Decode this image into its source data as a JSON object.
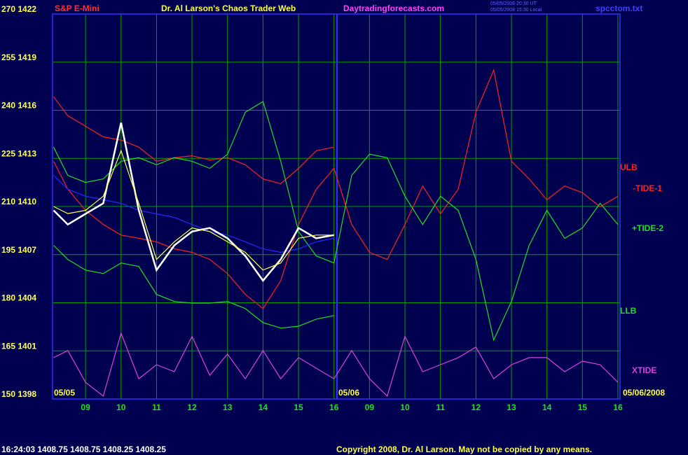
{
  "chart_data": {
    "type": "line",
    "title": "Dr. Al Larson's Chaos Trader Web",
    "instrument": "S&P E-Mini",
    "website": "Daytradingforecasts.com",
    "file_name": "spcctom.txt",
    "timestamp_ut": "05/05/2008 20:30 UT",
    "timestamp_local": "05/05/2008 15:30 Local",
    "date_labels": [
      "05/05",
      "05/06",
      "05/06/2008"
    ],
    "quote": "16:24:03  1408.75 1408.75 1408.25 1408.25",
    "copyright": "Copyright 2008, Dr. Al Larson. May not be copied by any means.",
    "grid": true,
    "xlim": [
      8.07,
      24.06
    ],
    "ylim": [
      150,
      270
    ],
    "xticks": [
      {
        "value": 9,
        "label": "09"
      },
      10,
      11,
      12,
      13,
      14,
      15,
      16,
      {
        "value": 17,
        "label": "09"
      },
      {
        "value": 18,
        "label": "10"
      },
      {
        "value": 19,
        "label": "11"
      },
      {
        "value": 20,
        "label": "12"
      },
      {
        "value": 21,
        "label": "13"
      },
      {
        "value": 22,
        "label": "14"
      },
      {
        "value": 23,
        "label": "15"
      },
      {
        "value": 24,
        "label": "16"
      }
    ],
    "yticks": [
      {
        "value": 150,
        "label": "150 1398"
      },
      {
        "value": 165,
        "label": "165 1401"
      },
      {
        "value": 180,
        "label": "180 1404"
      },
      {
        "value": 195,
        "label": "195 1407"
      },
      {
        "value": 210,
        "label": "210 1410"
      },
      {
        "value": 225,
        "label": "225 1413"
      },
      {
        "value": 240,
        "label": "240 1416"
      },
      {
        "value": 255,
        "label": "255 1419"
      },
      {
        "value": 270,
        "label": "270 1422"
      }
    ],
    "x": [
      8.1,
      8.5,
      9,
      9.5,
      10,
      10.5,
      11,
      11.5,
      12,
      12.5,
      13,
      13.5,
      14,
      14.5,
      15,
      15.5,
      16,
      16.5,
      17,
      17.5,
      18,
      18.5,
      19,
      19.5,
      20,
      20.5,
      21,
      21.5,
      22,
      22.5,
      23,
      23.5,
      24
    ],
    "series": [
      {
        "name": "ULB",
        "color": "#ff2020",
        "values": [
          244.2,
          238.3,
          235.0,
          231.7,
          230.7,
          228.5,
          224.1,
          225.2,
          225.8,
          224.5,
          225.2,
          223.0,
          218.6,
          217.1,
          221.9,
          227.4,
          228.5,
          null,
          null,
          null,
          null,
          null,
          null,
          null,
          null,
          null,
          null,
          null,
          null,
          null,
          null,
          null,
          null
        ]
      },
      {
        "name": "-TIDE-1",
        "color": "#ff2020",
        "values": [
          224.1,
          215.4,
          208.8,
          204.4,
          201.1,
          200.1,
          199.0,
          196.8,
          195.7,
          193.5,
          189.1,
          182.6,
          178.2,
          186.9,
          204.4,
          215.4,
          221.9,
          204.4,
          195.7,
          193.5,
          204.4,
          216.4,
          207.7,
          215.4,
          239.4,
          252.5,
          224.1,
          218.6,
          212.1,
          216.4,
          214.3,
          209.9,
          213.2
        ]
      },
      {
        "name": "+TIDE-2",
        "color": "#20e020",
        "values": [
          228.5,
          219.7,
          217.5,
          218.6,
          224.1,
          225.2,
          223.0,
          225.2,
          224.1,
          221.9,
          226.3,
          239.4,
          242.7,
          224.1,
          202.2,
          194.6,
          192.4,
          219.7,
          226.3,
          225.2,
          213.2,
          204.4,
          213.2,
          208.8,
          193.5,
          168.4,
          180.4,
          197.9,
          208.8,
          200.1,
          203.3,
          211.0,
          204.4
        ]
      },
      {
        "name": "LLB",
        "color": "#20e020",
        "values": [
          197.9,
          193.5,
          190.2,
          189.1,
          192.4,
          191.3,
          182.6,
          180.4,
          179.9,
          179.9,
          180.4,
          178.2,
          173.8,
          172.1,
          172.7,
          174.9,
          176.0,
          null,
          null,
          null,
          null,
          null,
          null,
          null,
          null,
          null,
          null,
          null,
          null,
          null,
          null,
          null,
          null
        ]
      },
      {
        "name": "XTIDE",
        "color": "#e040e0",
        "values": [
          162.9,
          165.1,
          155.2,
          150.9,
          170.5,
          156.3,
          160.7,
          158.5,
          169.5,
          157.4,
          164.0,
          156.3,
          165.1,
          156.3,
          162.9,
          159.6,
          156.3,
          165.1,
          156.3,
          150.9,
          169.5,
          158.5,
          160.7,
          162.9,
          166.2,
          156.3,
          160.7,
          162.9,
          162.9,
          158.5,
          161.8,
          160.7,
          155.2
        ]
      },
      {
        "color": "#2828ff",
        "values": [
          219.7,
          215.4,
          213.2,
          212.1,
          211.0,
          208.8,
          207.7,
          206.6,
          204.4,
          202.2,
          201.1,
          199.0,
          196.8,
          195.7,
          196.8,
          199.0,
          200.1,
          null,
          null,
          null,
          null,
          null,
          null,
          null,
          null,
          null,
          null,
          null,
          null,
          null,
          null,
          null,
          null
        ]
      },
      {
        "color": "#ffffff",
        "values": [
          208.8,
          204.4,
          207.7,
          211.0,
          236.1,
          208.8,
          190.2,
          197.9,
          202.2,
          203.3,
          200.1,
          194.6,
          186.9,
          193.5,
          203.3,
          200.1,
          201.1,
          null,
          null,
          null,
          null,
          null,
          null,
          null,
          null,
          null,
          null,
          null,
          null,
          null,
          null,
          null,
          null
        ]
      },
      {
        "color": "#ffff40",
        "values": [
          210.0,
          207.8,
          208.8,
          213.2,
          227.4,
          211.0,
          193.5,
          199.0,
          203.3,
          202.2,
          199.0,
          195.7,
          190.2,
          192.4,
          200.1,
          201.1,
          201.1,
          null,
          null,
          null,
          null,
          null,
          null,
          null,
          null,
          null,
          null,
          null,
          null,
          null,
          null,
          null,
          null
        ]
      }
    ]
  }
}
